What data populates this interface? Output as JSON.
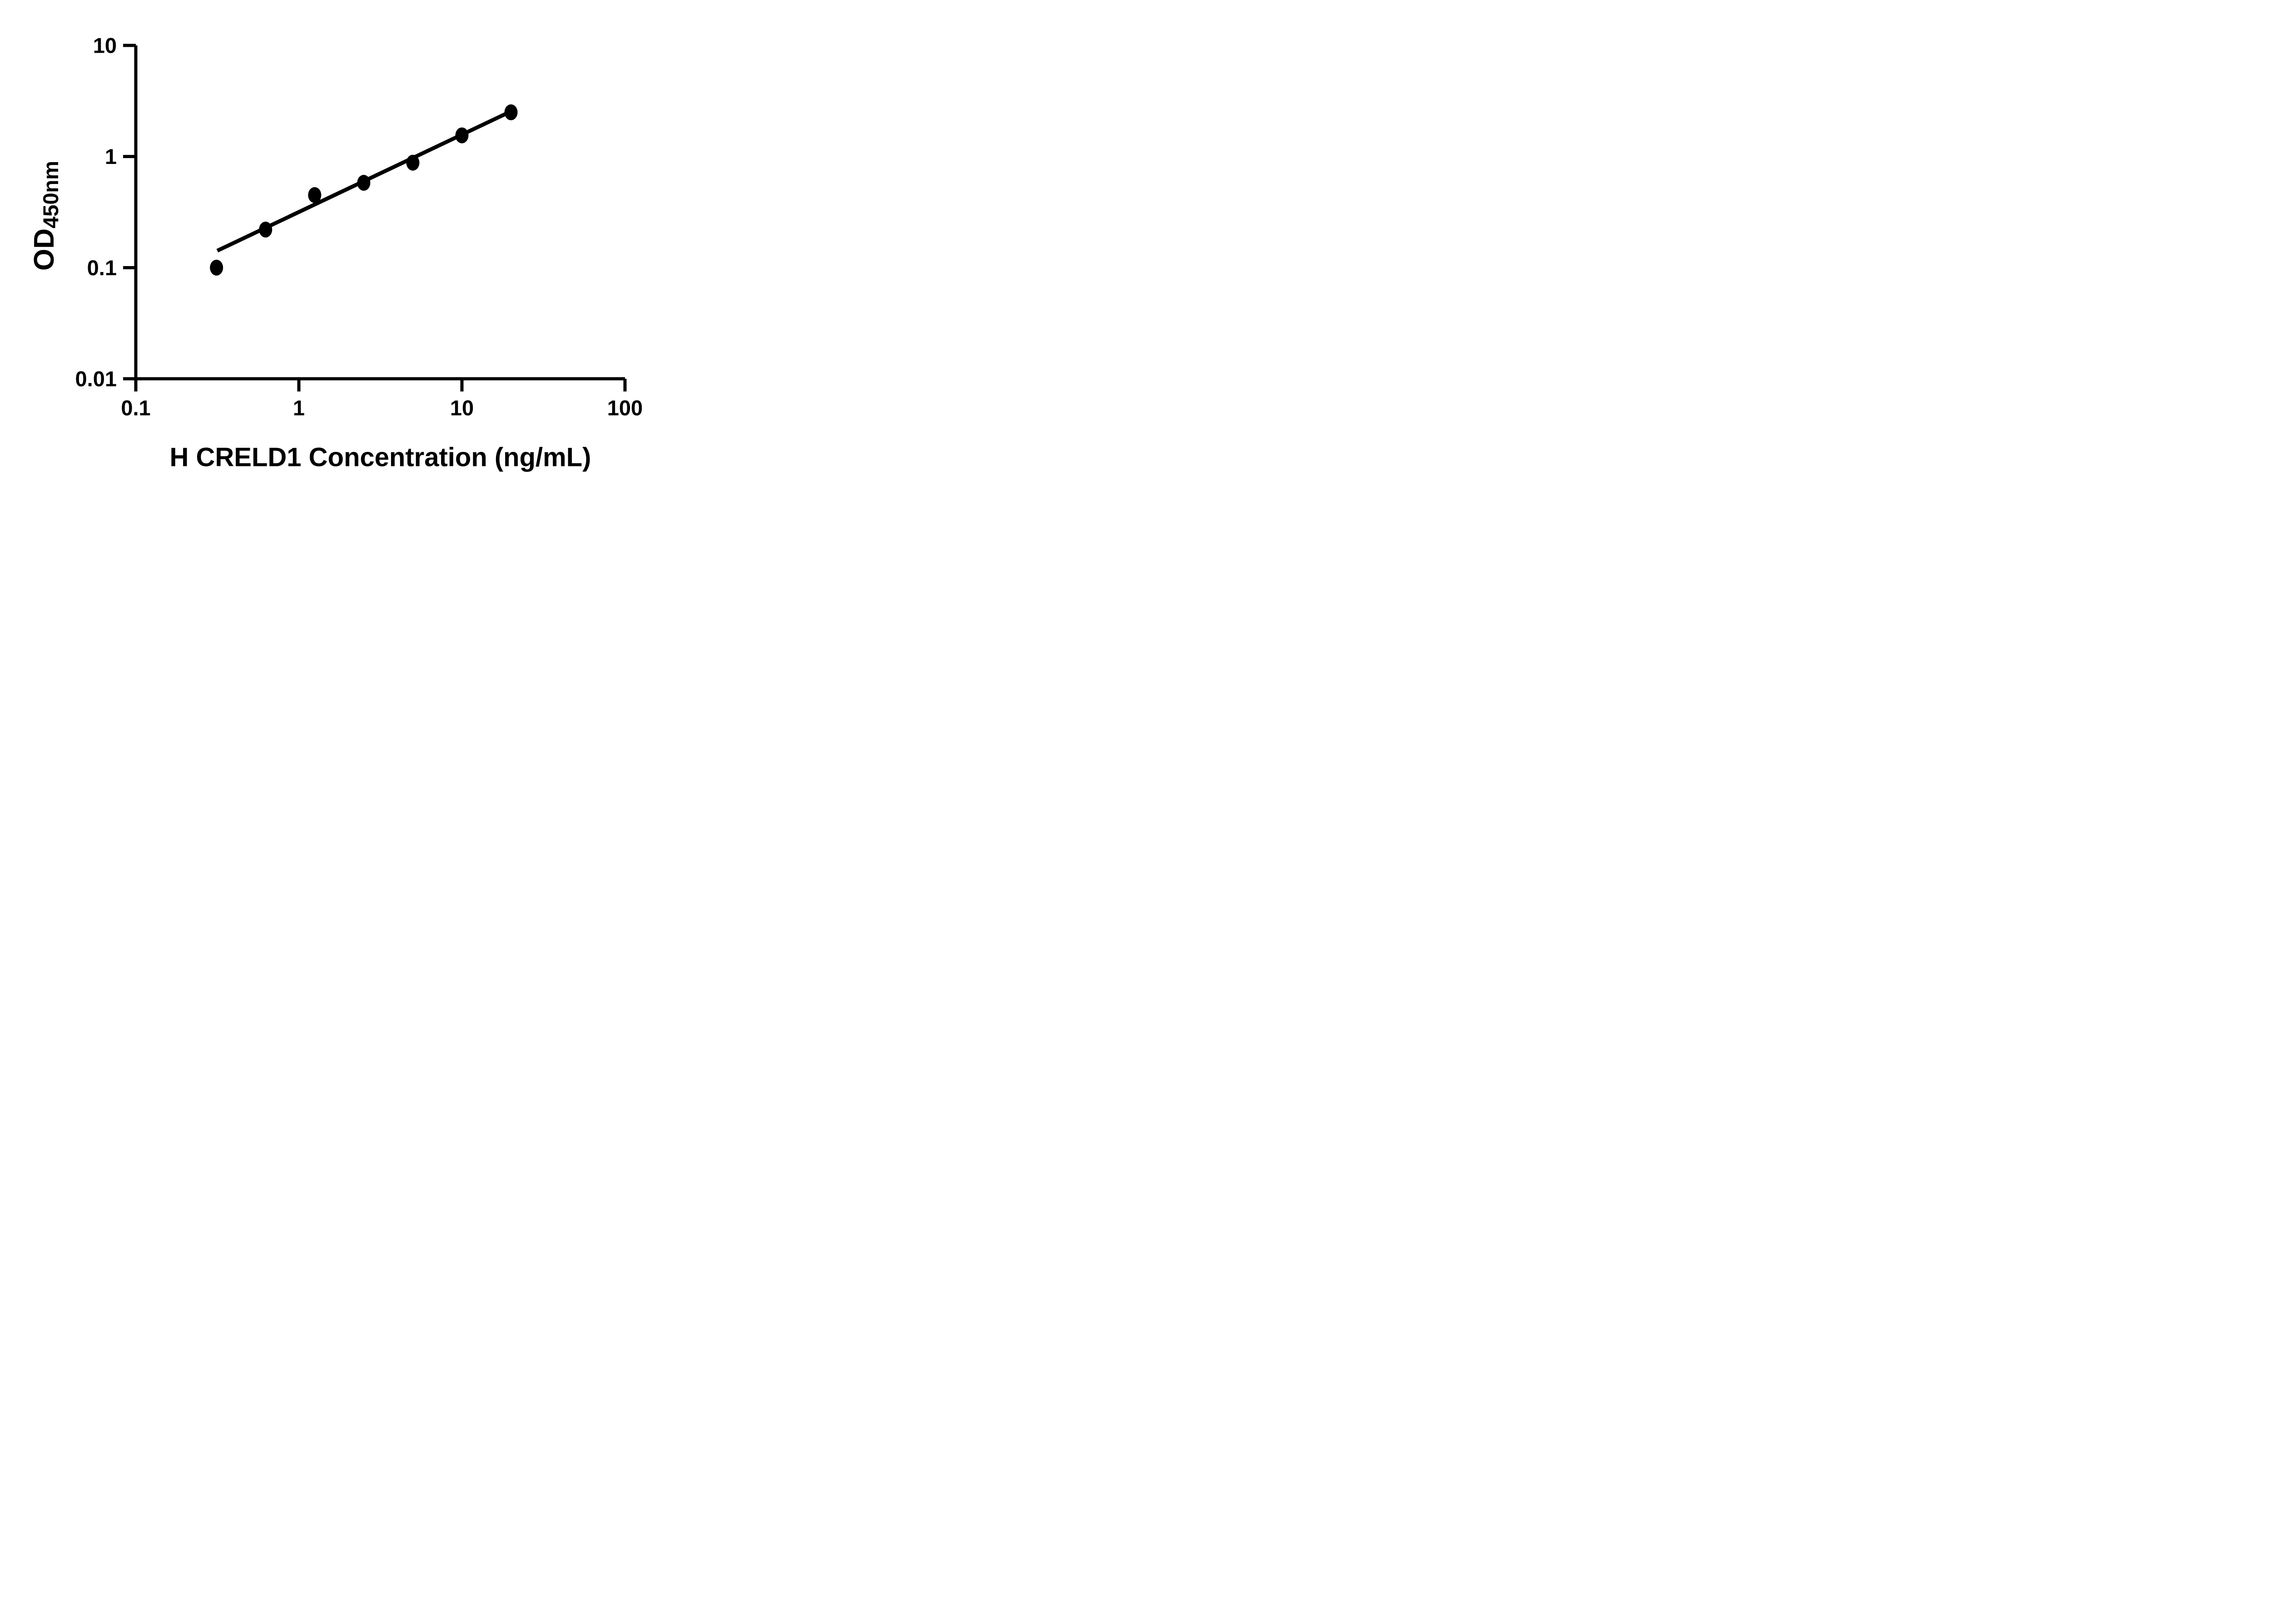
{
  "figure": {
    "background": "#FFFFFF",
    "ink_color": "#000000"
  },
  "chart_data": {
    "type": "scatter",
    "title": "",
    "xlabel": "H CRELD1 Concentration (ng/mL)",
    "ylabel": "OD",
    "ylabel_subscript": "450nm",
    "x_scale": "log",
    "y_scale": "log",
    "xlim": [
      0.1,
      100
    ],
    "ylim": [
      0.01,
      10
    ],
    "grid": false,
    "legend": "none",
    "x_ticks": [
      {
        "value": 0.1,
        "label": "0.1"
      },
      {
        "value": 1,
        "label": "1"
      },
      {
        "value": 10,
        "label": "10"
      },
      {
        "value": 100,
        "label": "100"
      }
    ],
    "y_ticks": [
      {
        "value": 0.01,
        "label": "0.01"
      },
      {
        "value": 0.1,
        "label": "0.1"
      },
      {
        "value": 1,
        "label": "1"
      },
      {
        "value": 10,
        "label": "10"
      }
    ],
    "series": [
      {
        "marker": "filled-circle",
        "color": "#000000",
        "x": [
          0.3125,
          0.625,
          1.25,
          2.5,
          5,
          10,
          20
        ],
        "y": [
          0.1,
          0.22,
          0.45,
          0.58,
          0.88,
          1.55,
          2.5
        ]
      }
    ],
    "fit_line": {
      "x_start": 0.316,
      "y_start": 0.142,
      "x_end": 20,
      "y_end": 2.55
    }
  }
}
